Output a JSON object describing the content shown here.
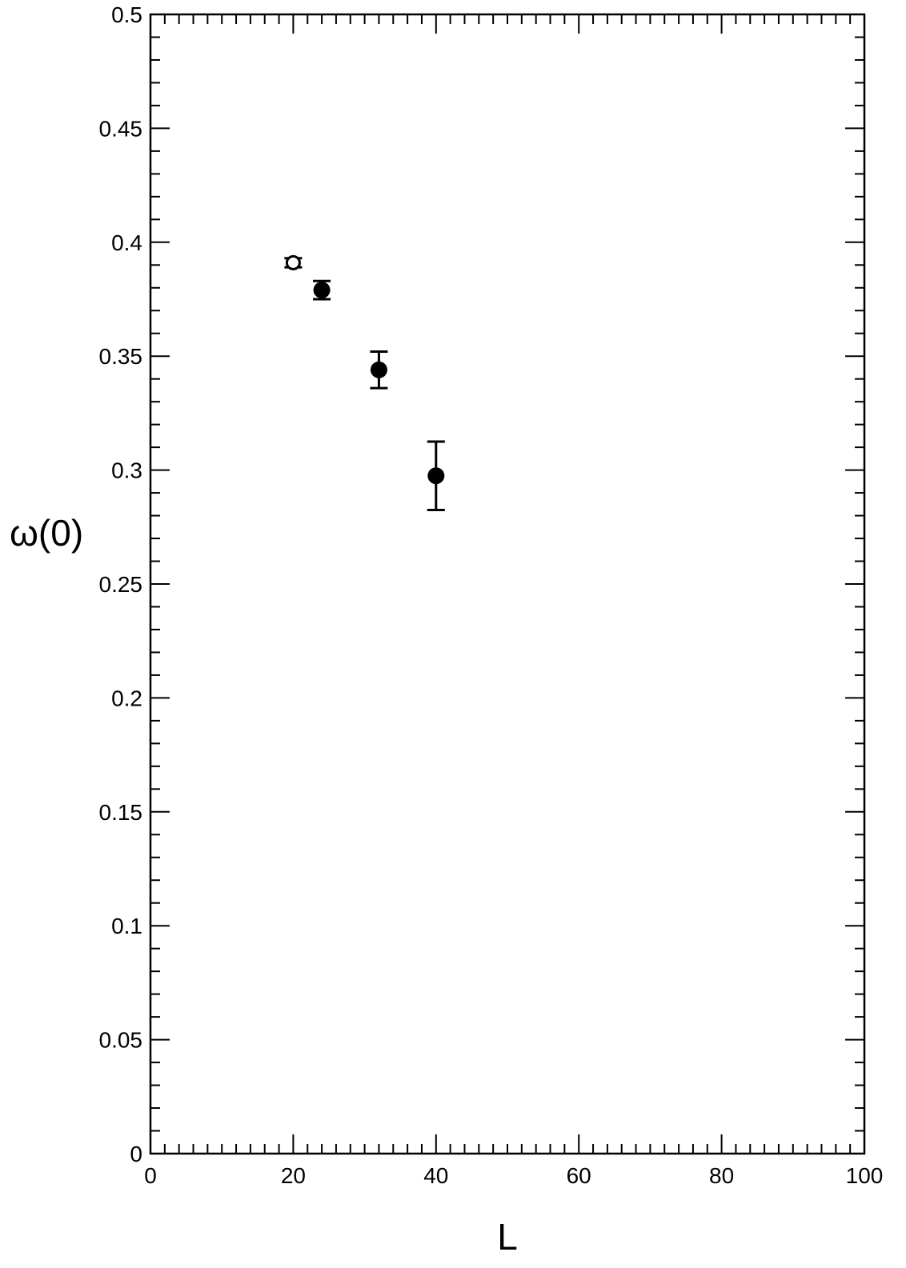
{
  "chart_data": {
    "type": "scatter",
    "title": "",
    "xlabel": "L",
    "ylabel": "ω(0)",
    "xlim": [
      0,
      100
    ],
    "ylim": [
      0,
      0.5
    ],
    "x_ticks": [
      0,
      20,
      40,
      60,
      80,
      100
    ],
    "x_tick_labels": [
      "0",
      "20",
      "40",
      "60",
      "80",
      "100"
    ],
    "y_ticks": [
      0,
      0.05,
      0.1,
      0.15,
      0.2,
      0.25,
      0.3,
      0.35,
      0.4,
      0.45,
      0.5
    ],
    "y_tick_labels": [
      "0",
      "0.05",
      "0.1",
      "0.15",
      "0.2",
      "0.25",
      "0.3",
      "0.35",
      "0.4",
      "0.45",
      "0.5"
    ],
    "grid": false,
    "series": [
      {
        "marker": "open-circle",
        "color": "#000000",
        "points": [
          {
            "x": 20,
            "y": 0.391,
            "err": 0.002
          }
        ]
      },
      {
        "marker": "filled-circle",
        "color": "#000000",
        "points": [
          {
            "x": 24,
            "y": 0.379,
            "err": 0.004
          },
          {
            "x": 32,
            "y": 0.344,
            "err": 0.008
          },
          {
            "x": 40,
            "y": 0.2975,
            "err": 0.015
          }
        ]
      }
    ]
  }
}
